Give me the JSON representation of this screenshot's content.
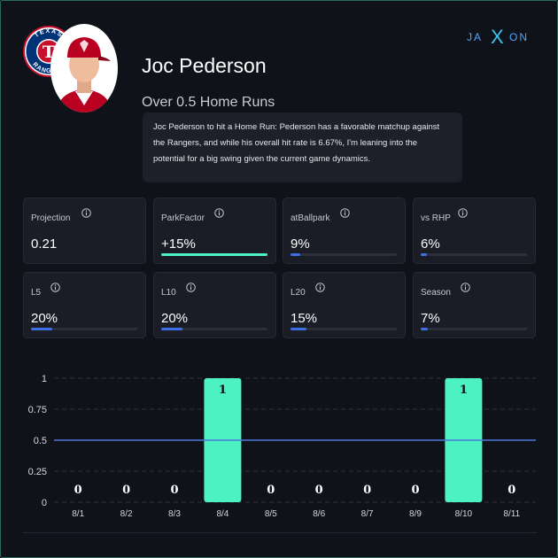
{
  "player": {
    "name": "Joc Pederson",
    "market": "Over 0.5 Home Runs",
    "analysis": "Joc Pederson to hit a Home Run: Pederson has a favorable matchup against the Rangers, and while his overall hit rate is 6.67%, I'm leaning into the potential for a big swing given the current game dynamics."
  },
  "team_logo": {
    "top_text": "TEXAS",
    "bottom_text": "RANGERS",
    "letter": "T"
  },
  "brand": {
    "left": "JA",
    "mid": "X",
    "right": "ON"
  },
  "stats": [
    {
      "label": "Projection",
      "value": "0.21",
      "fill": null
    },
    {
      "label": "ParkFactor",
      "value": "+15%",
      "fill": 1.0
    },
    {
      "label": "atBallpark",
      "value": "9%",
      "fill": 0.09
    },
    {
      "label": "vs RHP",
      "value": "6%",
      "fill": 0.06
    },
    {
      "label": "L5",
      "value": "20%",
      "fill": 0.2
    },
    {
      "label": "L10",
      "value": "20%",
      "fill": 0.2
    },
    {
      "label": "L20",
      "value": "15%",
      "fill": 0.15
    },
    {
      "label": "Season",
      "value": "7%",
      "fill": 0.07
    }
  ],
  "colors": {
    "accent": "#4df2c2",
    "bar_blue": "#3d6fe6",
    "line": "#4f78e0",
    "card_bg": "#1a1d26"
  },
  "chart_data": {
    "type": "bar",
    "categories": [
      "8/1",
      "8/2",
      "8/3",
      "8/4",
      "8/5",
      "8/6",
      "8/7",
      "8/9",
      "8/10",
      "8/11"
    ],
    "values": [
      0,
      0,
      0,
      1,
      0,
      0,
      0,
      0,
      1,
      0
    ],
    "data_labels": [
      "0",
      "0",
      "0",
      "1",
      "0",
      "0",
      "0",
      "0",
      "1",
      "0"
    ],
    "y_ticks": [
      "0",
      "0.25",
      "0.5",
      "0.75",
      "1"
    ],
    "ylim": [
      0,
      1
    ],
    "reference_line": 0.5,
    "grid": true,
    "title": "",
    "xlabel": "",
    "ylabel": ""
  }
}
